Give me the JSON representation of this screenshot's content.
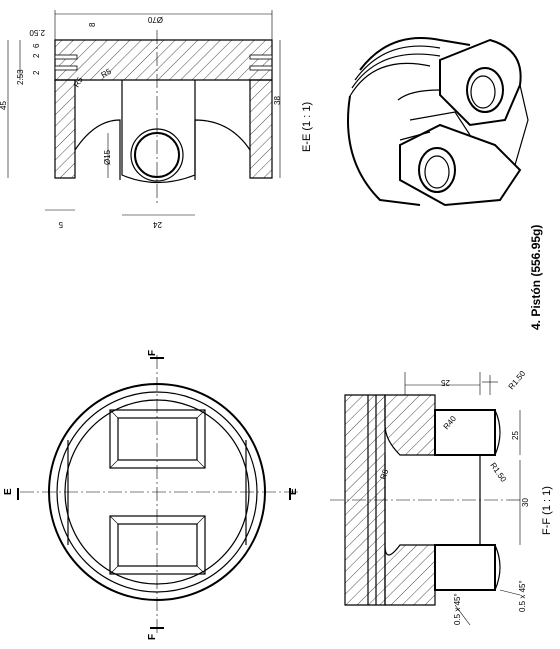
{
  "title": "4. Pistón (556.95g)",
  "views": {
    "ee": {
      "label": "E-E (1 : 1)",
      "dims": {
        "d70": "Ø70",
        "d8": "8",
        "d250": "2.50",
        "d2a": "2",
        "d2b": "2",
        "d6": "6",
        "d253": "2.53",
        "d45": "45",
        "d38": "38",
        "d5": "5",
        "d24": "24",
        "d15": "Ø15",
        "r5a": "R5",
        "r5b": "R5"
      }
    },
    "ff": {
      "label": "F-F  (1 : 1)",
      "dims": {
        "d25a": "25",
        "d25b": "25",
        "r150a": "R1.50",
        "r150b": "R1.50",
        "r40": "R40",
        "r5": "R5",
        "d30": "30",
        "ch1": "0.5 x 45°",
        "ch2": "0.5 x 45°"
      }
    },
    "top": {
      "section_e": "E",
      "section_f": "F"
    }
  }
}
